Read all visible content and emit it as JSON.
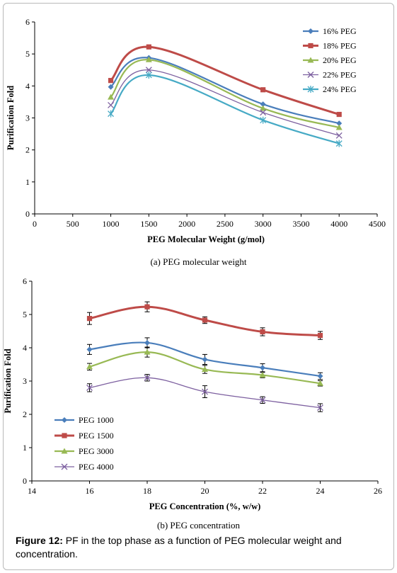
{
  "figure_caption": {
    "label": "Figure 12:",
    "text": " PF in the top phase as a function of PEG molecular weight and concentration."
  },
  "chart_data": [
    {
      "type": "line",
      "subtitle": "(a) PEG molecular weight",
      "xlabel": "PEG Molecular Weight  (g/mol)",
      "ylabel": "Purification Fold",
      "xlim": [
        0,
        4500
      ],
      "ylim": [
        0,
        6
      ],
      "xticks": [
        "0",
        "500",
        "1000",
        "1500",
        "2000",
        "2500",
        "3000",
        "3500",
        "4000",
        "4500"
      ],
      "yticks": [
        "0",
        "1",
        "2",
        "3",
        "4",
        "5",
        "6"
      ],
      "legend_position": "top-right",
      "x": [
        1000,
        1500,
        3000,
        4000
      ],
      "series": [
        {
          "name": "16% PEG",
          "color": "#4a7ebb",
          "marker": "diamond",
          "values": [
            3.97,
            4.88,
            3.43,
            2.83
          ]
        },
        {
          "name": "18% PEG",
          "color": "#be4b48",
          "marker": "square",
          "values": [
            4.17,
            5.22,
            3.88,
            3.11
          ]
        },
        {
          "name": "20% PEG",
          "color": "#98b954",
          "marker": "triangle",
          "values": [
            3.65,
            4.82,
            3.3,
            2.7
          ]
        },
        {
          "name": "22% PEG",
          "color": "#7d60a0",
          "marker": "x",
          "values": [
            3.4,
            4.5,
            3.17,
            2.45
          ]
        },
        {
          "name": "24% PEG",
          "color": "#46aac5",
          "marker": "star",
          "values": [
            3.13,
            4.34,
            2.93,
            2.2
          ]
        }
      ]
    },
    {
      "type": "line",
      "subtitle": "(b) PEG concentration",
      "xlabel": "PEG Concentration (%, w/w)",
      "ylabel": "Purification Fold",
      "xlim": [
        14,
        26
      ],
      "ylim": [
        0,
        6
      ],
      "xticks": [
        "14",
        "16",
        "18",
        "20",
        "22",
        "24",
        "26"
      ],
      "yticks": [
        "0",
        "1",
        "2",
        "3",
        "4",
        "5",
        "6"
      ],
      "legend_position": "bottom-left",
      "x": [
        16,
        18,
        20,
        22,
        24
      ],
      "series": [
        {
          "name": "PEG 1000",
          "color": "#4a7ebb",
          "marker": "diamond",
          "values": [
            3.95,
            4.15,
            3.65,
            3.4,
            3.15
          ],
          "errors": [
            0.15,
            0.15,
            0.15,
            0.12,
            0.1
          ]
        },
        {
          "name": "PEG 1500",
          "color": "#be4b48",
          "marker": "square",
          "values": [
            4.88,
            5.23,
            4.83,
            4.48,
            4.37
          ],
          "errors": [
            0.18,
            0.15,
            0.1,
            0.12,
            0.12
          ]
        },
        {
          "name": "PEG 3000",
          "color": "#98b954",
          "marker": "triangle",
          "values": [
            3.43,
            3.87,
            3.35,
            3.18,
            2.93
          ],
          "errors": [
            0.1,
            0.15,
            0.12,
            0.08,
            0.08
          ]
        },
        {
          "name": "PEG 4000",
          "color": "#7d60a0",
          "marker": "x",
          "values": [
            2.8,
            3.1,
            2.68,
            2.43,
            2.2
          ],
          "errors": [
            0.12,
            0.1,
            0.18,
            0.1,
            0.12
          ]
        }
      ]
    }
  ]
}
